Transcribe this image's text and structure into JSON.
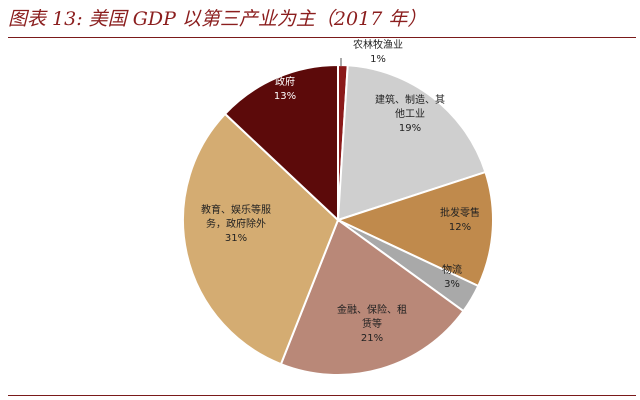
{
  "figure": {
    "title": "图表 13: 美国 GDP 以第三产业为主（2017 年）"
  },
  "chart_data": {
    "type": "pie",
    "title": "图表 13: 美国 GDP 以第三产业为主（2017 年）",
    "slices": [
      {
        "label": "农林牧渔业",
        "value": 1,
        "value_label": "1%",
        "color": "#8b1a1a"
      },
      {
        "label": "建筑、制造、其他工业",
        "value": 19,
        "value_label": "19%",
        "color": "#cfcfcf"
      },
      {
        "label": "批发零售",
        "value": 12,
        "value_label": "12%",
        "color": "#c08a4c"
      },
      {
        "label": "物流",
        "value": 3,
        "value_label": "3%",
        "color": "#a9a9a9"
      },
      {
        "label": "金融、保险、租赁等",
        "value": 21,
        "value_label": "21%",
        "color": "#b98878"
      },
      {
        "label": "教育、娱乐等服务，政府除外",
        "value": 31,
        "value_label": "31%",
        "color": "#d4ac72"
      },
      {
        "label": "政府",
        "value": 13,
        "value_label": "13%",
        "color": "#5c0a0a"
      }
    ]
  }
}
